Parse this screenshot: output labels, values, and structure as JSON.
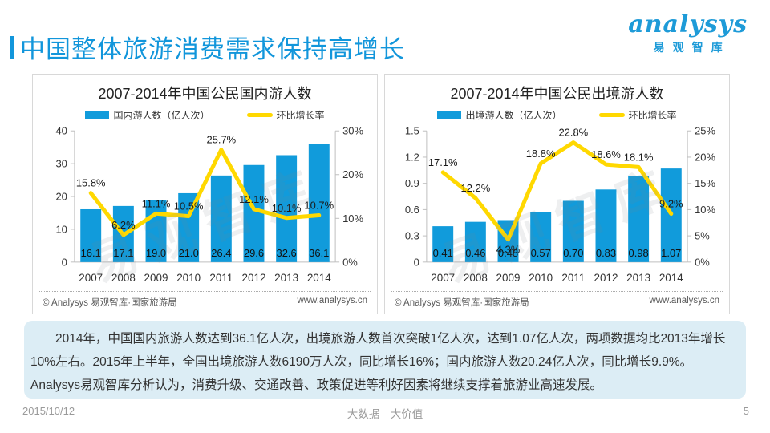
{
  "header": {
    "title": "中国整体旅游消费需求保持高增长"
  },
  "logo": {
    "brand": "analysys",
    "cn": "易观智库"
  },
  "chart_data": [
    {
      "type": "bar+line",
      "title": "2007-2014年中国公民国内游人数",
      "categories": [
        "2007",
        "2008",
        "2009",
        "2010",
        "2011",
        "2012",
        "2013",
        "2014"
      ],
      "series": [
        {
          "name": "国内游人数（亿人次）",
          "type": "bar",
          "axis": "left",
          "values": [
            16.1,
            17.1,
            19.0,
            21.0,
            26.4,
            29.6,
            32.6,
            36.1
          ],
          "labels": [
            "16.1",
            "17.1",
            "19.0",
            "21.0",
            "26.4",
            "29.6",
            "32.6",
            "36.1"
          ],
          "color": "#119BDB"
        },
        {
          "name": "环比增长率",
          "type": "line",
          "axis": "right",
          "values": [
            15.8,
            6.2,
            11.1,
            10.5,
            25.7,
            12.1,
            10.1,
            10.7
          ],
          "labels": [
            "15.8%",
            "6.2%",
            "11.1%",
            "10.5%",
            "25.7%",
            "12.1%",
            "10.1%",
            "10.7%"
          ],
          "color": "#FFD800"
        }
      ],
      "left_axis": {
        "min": 0,
        "max": 40,
        "ticks": [
          "0",
          "10",
          "20",
          "30",
          "40"
        ]
      },
      "right_axis": {
        "min": 0,
        "max": 30,
        "ticks": [
          "0%",
          "10%",
          "20%",
          "30%"
        ]
      },
      "grid": false,
      "legend_position": "top",
      "watermark": "易观智库",
      "footer_left": "© Analysys 易观智库·国家旅游局",
      "footer_right": "www.analysys.cn"
    },
    {
      "type": "bar+line",
      "title": "2007-2014年中国公民出境游人数",
      "categories": [
        "2007",
        "2008",
        "2009",
        "2010",
        "2011",
        "2012",
        "2013",
        "2014"
      ],
      "series": [
        {
          "name": "出境游人数（亿人次）",
          "type": "bar",
          "axis": "left",
          "values": [
            0.41,
            0.46,
            0.48,
            0.57,
            0.7,
            0.83,
            0.98,
            1.07
          ],
          "labels": [
            "0.41",
            "0.46",
            "0.48",
            "0.57",
            "0.70",
            "0.83",
            "0.98",
            "1.07"
          ],
          "color": "#119BDB"
        },
        {
          "name": "环比增长率",
          "type": "line",
          "axis": "right",
          "values": [
            17.1,
            12.2,
            4.3,
            18.8,
            22.8,
            18.6,
            18.1,
            9.2
          ],
          "labels": [
            "17.1%",
            "12.2%",
            "4.3%",
            "18.8%",
            "22.8%",
            "18.6%",
            "18.1%",
            "9.2%"
          ],
          "color": "#FFD800"
        }
      ],
      "left_axis": {
        "min": 0,
        "max": 1.5,
        "ticks": [
          "0",
          "0.3",
          "0.6",
          "0.9",
          "1.2",
          "1.5"
        ]
      },
      "right_axis": {
        "min": 0,
        "max": 25,
        "ticks": [
          "0%",
          "5%",
          "10%",
          "15%",
          "20%",
          "25%"
        ]
      },
      "grid": false,
      "legend_position": "top",
      "watermark": "易观智库",
      "footer_left": "© Analysys 易观智库·国家旅游局",
      "footer_right": "www.analysys.cn"
    }
  ],
  "summary": {
    "p1": "2014年，中国国内旅游人数达到36.1亿人次，出境旅游人数首次突破1亿人次，达到1.07亿人次，两项数据均比2013年增长10%左右。2015年上半年，全国出境旅游人数6190万人次，同比增长16%；国内旅游人数20.24亿人次，同比增长9.9%。",
    "p2": "Analysys易观智库分析认为，消费升级、交通改善、政策促进等利好因素将继续支撑着旅游业高速发展。"
  },
  "footer": {
    "date": "2015/10/12",
    "slogan": "大数据　大价值",
    "page": "5"
  },
  "colors": {
    "accent": "#1296DB",
    "bar": "#119BDB",
    "line": "#FFD800",
    "panel_border": "#D8D8D8",
    "summary_bg": "#DCEDF5"
  }
}
